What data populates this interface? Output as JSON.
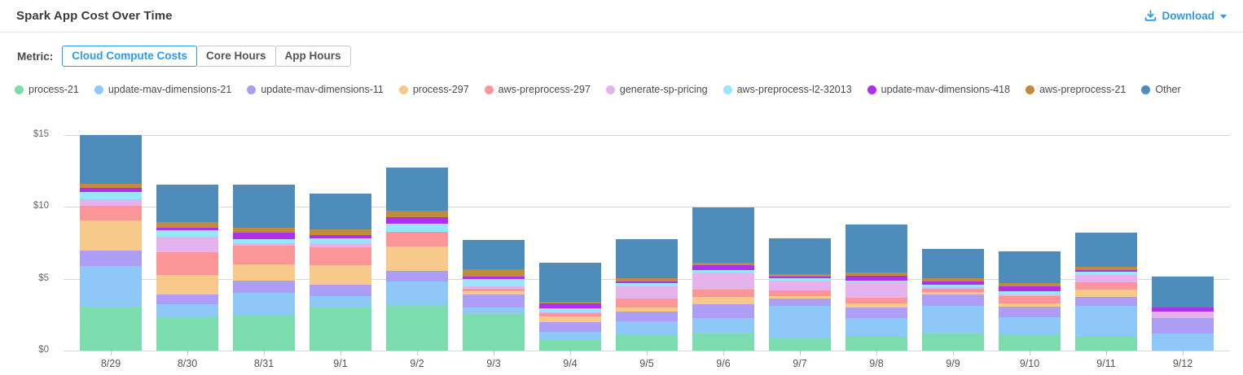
{
  "header": {
    "title": "Spark App Cost Over Time",
    "download_label": "Download"
  },
  "metric": {
    "label": "Metric:",
    "options": [
      "Cloud Compute Costs",
      "Core Hours",
      "App Hours"
    ],
    "selected": "Cloud Compute Costs"
  },
  "icons": {
    "download": "tray-arrow-down",
    "caret": "caret-down"
  },
  "colors": {
    "accent_blue": "#2b9bf3",
    "gridline": "#d9d9d9",
    "axis_text": "#666666"
  },
  "chart_data": {
    "type": "bar",
    "stacked": true,
    "title": "Spark App Cost Over Time",
    "xlabel": "",
    "ylabel": "Cloud Compute Costs ($)",
    "ylim": [
      0,
      15
    ],
    "grid": true,
    "legend_position": "top",
    "ytick_values": [
      0,
      5,
      10,
      15
    ],
    "ytick_labels": [
      "$0",
      "$5",
      "$10",
      "$15"
    ],
    "categories": [
      "8/29",
      "8/30",
      "8/31",
      "9/1",
      "9/2",
      "9/3",
      "9/4",
      "9/5",
      "9/6",
      "9/7",
      "9/8",
      "9/9",
      "9/10",
      "9/11",
      "9/12"
    ],
    "series": [
      {
        "name": "process-21",
        "color": "#7BDCAE",
        "values": [
          3.05,
          2.35,
          2.51,
          3.07,
          3.18,
          2.55,
          0.8,
          1.12,
          1.18,
          0.9,
          0.99,
          1.18,
          1.12,
          0.94,
          0.0
        ]
      },
      {
        "name": "update-mav-dimensions-21",
        "color": "#8EC8F8",
        "values": [
          2.85,
          0.88,
          1.51,
          0.71,
          1.61,
          0.45,
          0.5,
          0.9,
          1.07,
          2.21,
          1.25,
          1.93,
          1.18,
          2.17,
          1.18
        ]
      },
      {
        "name": "update-mav-dimensions-11",
        "color": "#AB9EF4",
        "values": [
          1.05,
          0.65,
          0.84,
          0.8,
          0.75,
          0.9,
          0.7,
          0.71,
          0.99,
          0.51,
          0.75,
          0.79,
          0.75,
          0.6,
          1.07
        ]
      },
      {
        "name": "process-297",
        "color": "#F7C98B",
        "values": [
          2.1,
          1.4,
          1.15,
          1.34,
          1.69,
          0.22,
          0.37,
          0.26,
          0.51,
          0.19,
          0.3,
          0.15,
          0.24,
          0.52,
          0.0
        ]
      },
      {
        "name": "aws-preprocess-297",
        "color": "#FB9598",
        "values": [
          1.05,
          1.55,
          1.27,
          1.25,
          1.01,
          0.19,
          0.25,
          0.62,
          0.49,
          0.37,
          0.41,
          0.26,
          0.51,
          0.51,
          0.0
        ]
      },
      {
        "name": "generate-sp-pricing",
        "color": "#E6B2EB",
        "values": [
          0.45,
          1.1,
          0.22,
          0.3,
          0.05,
          0.19,
          0.12,
          0.88,
          1.2,
          0.69,
          1.03,
          0.11,
          0.13,
          0.51,
          0.49
        ]
      },
      {
        "name": "aws-preprocess-l2-32013",
        "color": "#97E6FA",
        "values": [
          0.5,
          0.45,
          0.24,
          0.37,
          0.56,
          0.49,
          0.18,
          0.19,
          0.19,
          0.15,
          0.13,
          0.19,
          0.19,
          0.22,
          0.0
        ]
      },
      {
        "name": "update-mav-dimensions-418",
        "color": "#AD30EB",
        "values": [
          0.28,
          0.15,
          0.47,
          0.22,
          0.43,
          0.19,
          0.35,
          0.15,
          0.3,
          0.15,
          0.37,
          0.22,
          0.37,
          0.15,
          0.26
        ]
      },
      {
        "name": "aws-preprocess-21",
        "color": "#BE8C3D",
        "values": [
          0.27,
          0.43,
          0.37,
          0.37,
          0.47,
          0.51,
          0.15,
          0.22,
          0.19,
          0.13,
          0.19,
          0.22,
          0.19,
          0.24,
          0.0
        ]
      },
      {
        "name": "Other",
        "color": "#4D8CBB",
        "values": [
          3.4,
          2.6,
          2.96,
          2.51,
          2.98,
          2.02,
          2.7,
          2.73,
          3.86,
          2.53,
          3.37,
          2.02,
          2.25,
          2.38,
          2.15
        ]
      }
    ]
  }
}
